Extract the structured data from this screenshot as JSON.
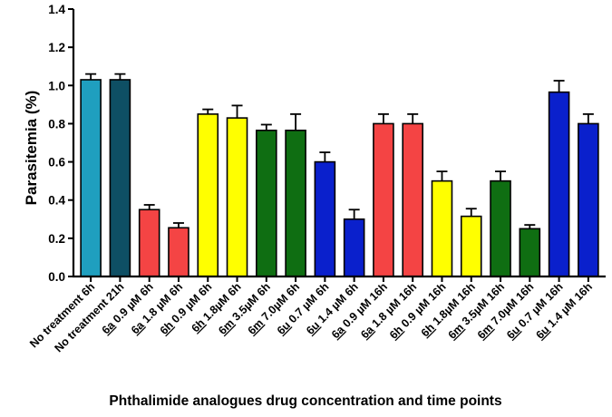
{
  "chart_data": {
    "type": "bar",
    "title": "",
    "xlabel": "Phthalimide analogues drug concentration and time points",
    "ylabel": "Parasitemia (%)",
    "ylim": [
      0,
      1.4
    ],
    "yticks": [
      "0.0",
      "0.2",
      "0.4",
      "0.6",
      "0.8",
      "1.0",
      "1.2",
      "1.4"
    ],
    "grid": false,
    "categories": [
      {
        "prefix": "",
        "compound": "",
        "suffix": "No treatment 6h"
      },
      {
        "prefix": "",
        "compound": "",
        "suffix": "No treatment 21h"
      },
      {
        "prefix": "",
        "compound": "6a",
        "suffix": " 0.9 µM 6h"
      },
      {
        "prefix": "",
        "compound": "6a",
        "suffix": " 1.8 µM 6h"
      },
      {
        "prefix": "",
        "compound": "6h",
        "suffix": " 0.9 µM 6h"
      },
      {
        "prefix": "",
        "compound": "6h",
        "suffix": " 1.8µM 6h"
      },
      {
        "prefix": "",
        "compound": "6m",
        "suffix": " 3.5µM 6h"
      },
      {
        "prefix": "",
        "compound": "6m",
        "suffix": " 7.0µM 6h"
      },
      {
        "prefix": "",
        "compound": "6u",
        "suffix": " 0.7 µM 6h"
      },
      {
        "prefix": "",
        "compound": "6u",
        "suffix": " 1.4 µM 6h"
      },
      {
        "prefix": "",
        "compound": "6a",
        "suffix": " 0.9 µM 16h"
      },
      {
        "prefix": "",
        "compound": "6a",
        "suffix": " 1.8 µM 16h"
      },
      {
        "prefix": "",
        "compound": "6h",
        "suffix": " 0.9 µM 16h"
      },
      {
        "prefix": "",
        "compound": "6h",
        "suffix": " 1.8µM 16h"
      },
      {
        "prefix": "",
        "compound": "6m",
        "suffix": " 3.5µM 16h"
      },
      {
        "prefix": "",
        "compound": "6m",
        "suffix": " 7.0µM 16h"
      },
      {
        "prefix": "",
        "compound": "6u",
        "suffix": " 0.7 µM 16h"
      },
      {
        "prefix": "",
        "compound": "6u",
        "suffix": " 1.4 µM 16h"
      }
    ],
    "values": [
      1.03,
      1.03,
      0.35,
      0.255,
      0.85,
      0.83,
      0.765,
      0.765,
      0.6,
      0.3,
      0.8,
      0.8,
      0.5,
      0.315,
      0.5,
      0.25,
      0.965,
      0.8
    ],
    "errors": [
      0.03,
      0.03,
      0.025,
      0.025,
      0.025,
      0.065,
      0.03,
      0.085,
      0.05,
      0.05,
      0.05,
      0.05,
      0.05,
      0.04,
      0.05,
      0.02,
      0.06,
      0.05
    ],
    "colors": [
      "#1f9fbf",
      "#0e4f64",
      "#f44444",
      "#f44444",
      "#ffff00",
      "#ffff00",
      "#0f6e12",
      "#0f6e12",
      "#0a20cc",
      "#0a20cc",
      "#f44444",
      "#f44444",
      "#ffff00",
      "#ffff00",
      "#0f6e12",
      "#0f6e12",
      "#0a20cc",
      "#0a20cc"
    ]
  }
}
